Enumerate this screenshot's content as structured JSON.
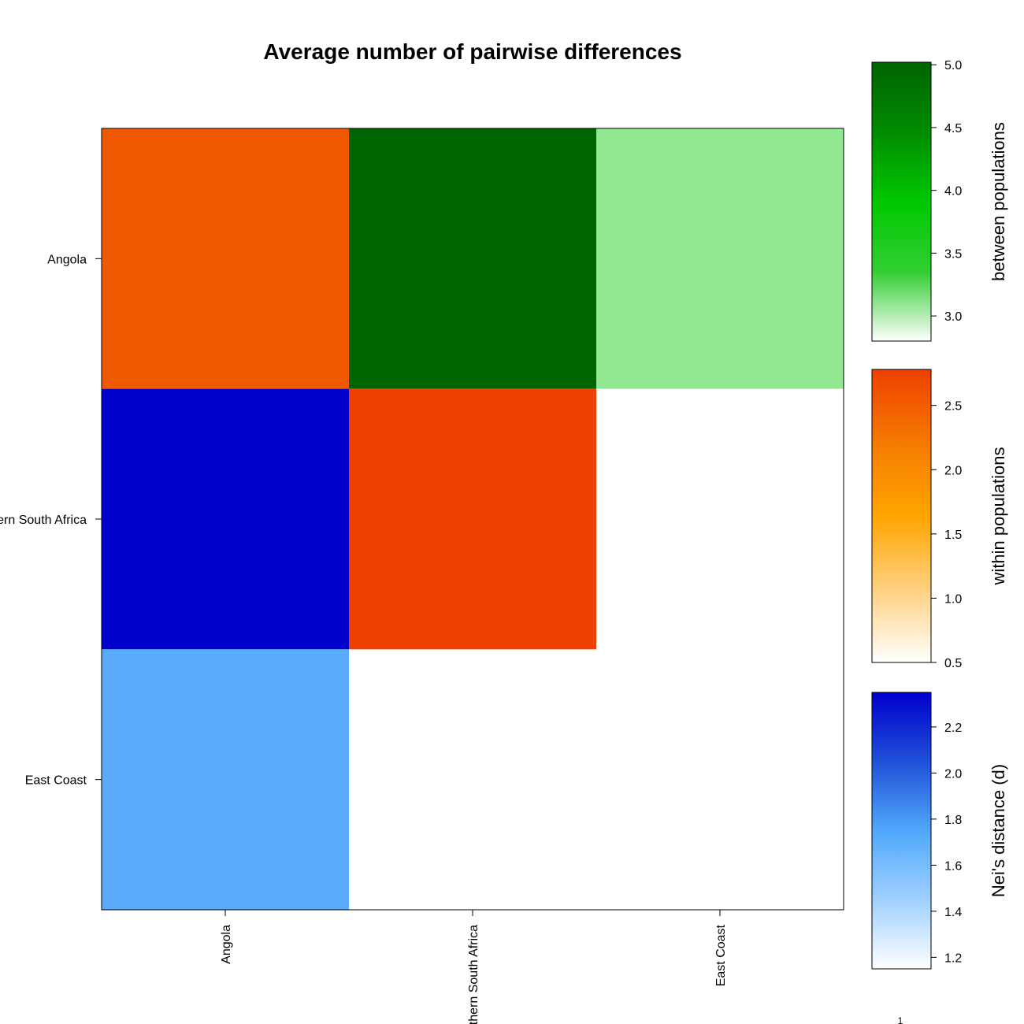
{
  "chart_data": {
    "type": "heatmap",
    "title": "Average number of pairwise differences",
    "row_labels": [
      "Angola",
      "Southern South Africa",
      "East Coast"
    ],
    "col_labels": [
      "Angola",
      "Southern South Africa",
      "East Coast"
    ],
    "cells": [
      {
        "row": "Angola",
        "col": "Angola",
        "measure": "within populations",
        "value": 2.3,
        "color": "#F05800"
      },
      {
        "row": "Angola",
        "col": "Southern South Africa",
        "measure": "between populations",
        "value": 5.0,
        "color": "#006400"
      },
      {
        "row": "Angola",
        "col": "East Coast",
        "measure": "between populations",
        "value": 3.6,
        "color": "#90E890"
      },
      {
        "row": "Southern South Africa",
        "col": "Angola",
        "measure": "Nei's distance (d)",
        "value": 2.35,
        "color": "#0000CD"
      },
      {
        "row": "Southern South Africa",
        "col": "Southern South Africa",
        "measure": "within populations",
        "value": 2.6,
        "color": "#EE4000"
      },
      {
        "row": "East Coast",
        "col": "Angola",
        "measure": "Nei's distance (d)",
        "value": 1.7,
        "color": "#5AAAFA"
      }
    ],
    "colorbars": [
      {
        "label": "between populations",
        "range": [
          2.8,
          5.02
        ],
        "ticks": [
          "3.0",
          "3.5",
          "4.0",
          "4.5",
          "5.0"
        ],
        "gradient": [
          "#FFFFFF",
          "#32CD32",
          "#00C800",
          "#008B00",
          "#006400"
        ]
      },
      {
        "label": "within populations",
        "range": [
          0.5,
          2.78
        ],
        "ticks": [
          "0.5",
          "1.0",
          "1.5",
          "2.0",
          "2.5"
        ],
        "gradient": [
          "#FFFFFF",
          "#FFD080",
          "#FFA500",
          "#F57A00",
          "#EE4000"
        ]
      },
      {
        "label": "Nei's distance (d)",
        "range": [
          1.15,
          2.35
        ],
        "ticks": [
          "1.2",
          "1.4",
          "1.6",
          "1.8",
          "2.0",
          "2.2"
        ],
        "gradient": [
          "#FFFFFF",
          "#A0D0FF",
          "#50A8FA",
          "#2050D8",
          "#0000CD"
        ]
      }
    ],
    "footnote": "1"
  }
}
